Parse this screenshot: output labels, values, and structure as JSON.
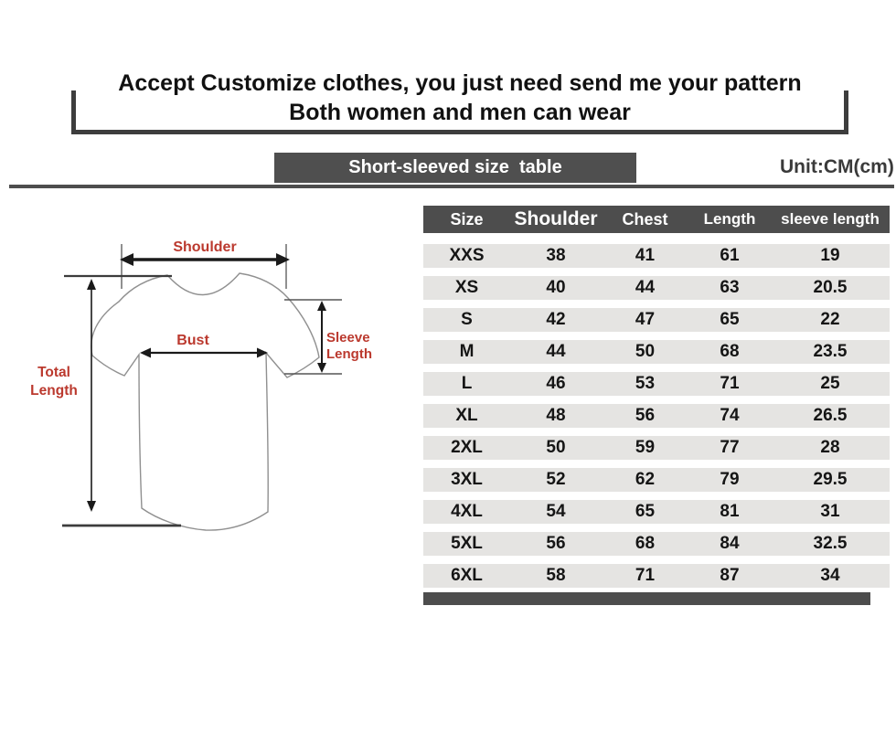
{
  "header": {
    "line1": "Accept Customize clothes, you just need send me your pattern",
    "line2": "Both women and men can wear"
  },
  "banner": {
    "title": "Short-sleeved size  table",
    "unit": "Unit:CM(cm)"
  },
  "diagram": {
    "shoulder_label": "Shoulder",
    "bust_label": "Bust",
    "sleeve_label_line1": "Sleeve",
    "sleeve_label_line2": "Length",
    "total_label_line1": "Total",
    "total_label_line2": "Length"
  },
  "size_table": {
    "columns": [
      "Size",
      "Shoulder",
      "Chest",
      "Length",
      "sleeve length"
    ],
    "rows": [
      [
        "XXS",
        "38",
        "41",
        "61",
        "19"
      ],
      [
        "XS",
        "40",
        "44",
        "63",
        "20.5"
      ],
      [
        "S",
        "42",
        "47",
        "65",
        "22"
      ],
      [
        "M",
        "44",
        "50",
        "68",
        "23.5"
      ],
      [
        "L",
        "46",
        "53",
        "71",
        "25"
      ],
      [
        "XL",
        "48",
        "56",
        "74",
        "26.5"
      ],
      [
        "2XL",
        "50",
        "59",
        "77",
        "28"
      ],
      [
        "3XL",
        "52",
        "62",
        "79",
        "29.5"
      ],
      [
        "4XL",
        "54",
        "65",
        "81",
        "31"
      ],
      [
        "5XL",
        "56",
        "68",
        "84",
        "32.5"
      ],
      [
        "6XL",
        "58",
        "71",
        "87",
        "34"
      ]
    ]
  },
  "colors": {
    "dark_band": "#4d4d4d",
    "row_stripe": "#e5e4e2",
    "diagram_label_red": "#bb392e",
    "text_black": "#111111"
  },
  "chart_data": {
    "type": "table",
    "title": "Short-sleeved size  table",
    "unit": "CM(cm)",
    "columns": [
      "Size",
      "Shoulder",
      "Chest",
      "Length",
      "sleeve length"
    ],
    "rows": [
      [
        "XXS",
        38,
        41,
        61,
        19
      ],
      [
        "XS",
        40,
        44,
        63,
        20.5
      ],
      [
        "S",
        42,
        47,
        65,
        22
      ],
      [
        "M",
        44,
        50,
        68,
        23.5
      ],
      [
        "L",
        46,
        53,
        71,
        25
      ],
      [
        "XL",
        48,
        56,
        74,
        26.5
      ],
      [
        "2XL",
        50,
        59,
        77,
        28
      ],
      [
        "3XL",
        52,
        62,
        79,
        29.5
      ],
      [
        "4XL",
        54,
        65,
        81,
        31
      ],
      [
        "5XL",
        56,
        68,
        84,
        32.5
      ],
      [
        "6XL",
        58,
        71,
        87,
        34
      ]
    ]
  }
}
